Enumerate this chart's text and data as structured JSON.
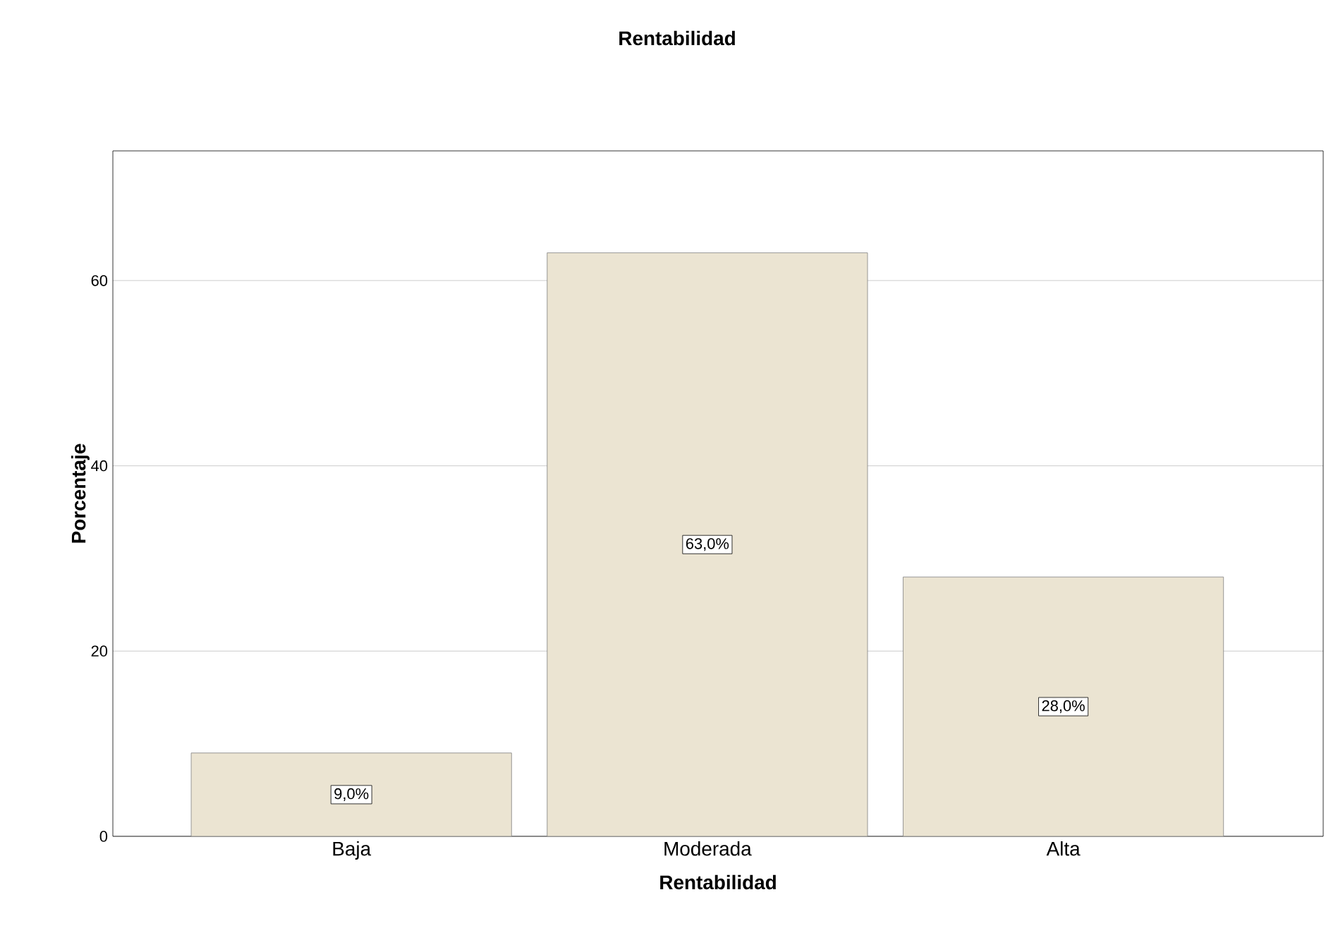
{
  "chart_data": {
    "type": "bar",
    "title": "Rentabilidad",
    "xlabel": "Rentabilidad",
    "ylabel": "Porcentaje",
    "categories": [
      "Baja",
      "Moderada",
      "Alta"
    ],
    "values": [
      9,
      63,
      28
    ],
    "value_labels": [
      "9,0%",
      "63,0%",
      "28,0%"
    ],
    "color": "#ebe4d2",
    "ylim": [
      0,
      74
    ],
    "yticks": [
      0,
      20,
      40,
      60
    ],
    "grid": "y"
  }
}
